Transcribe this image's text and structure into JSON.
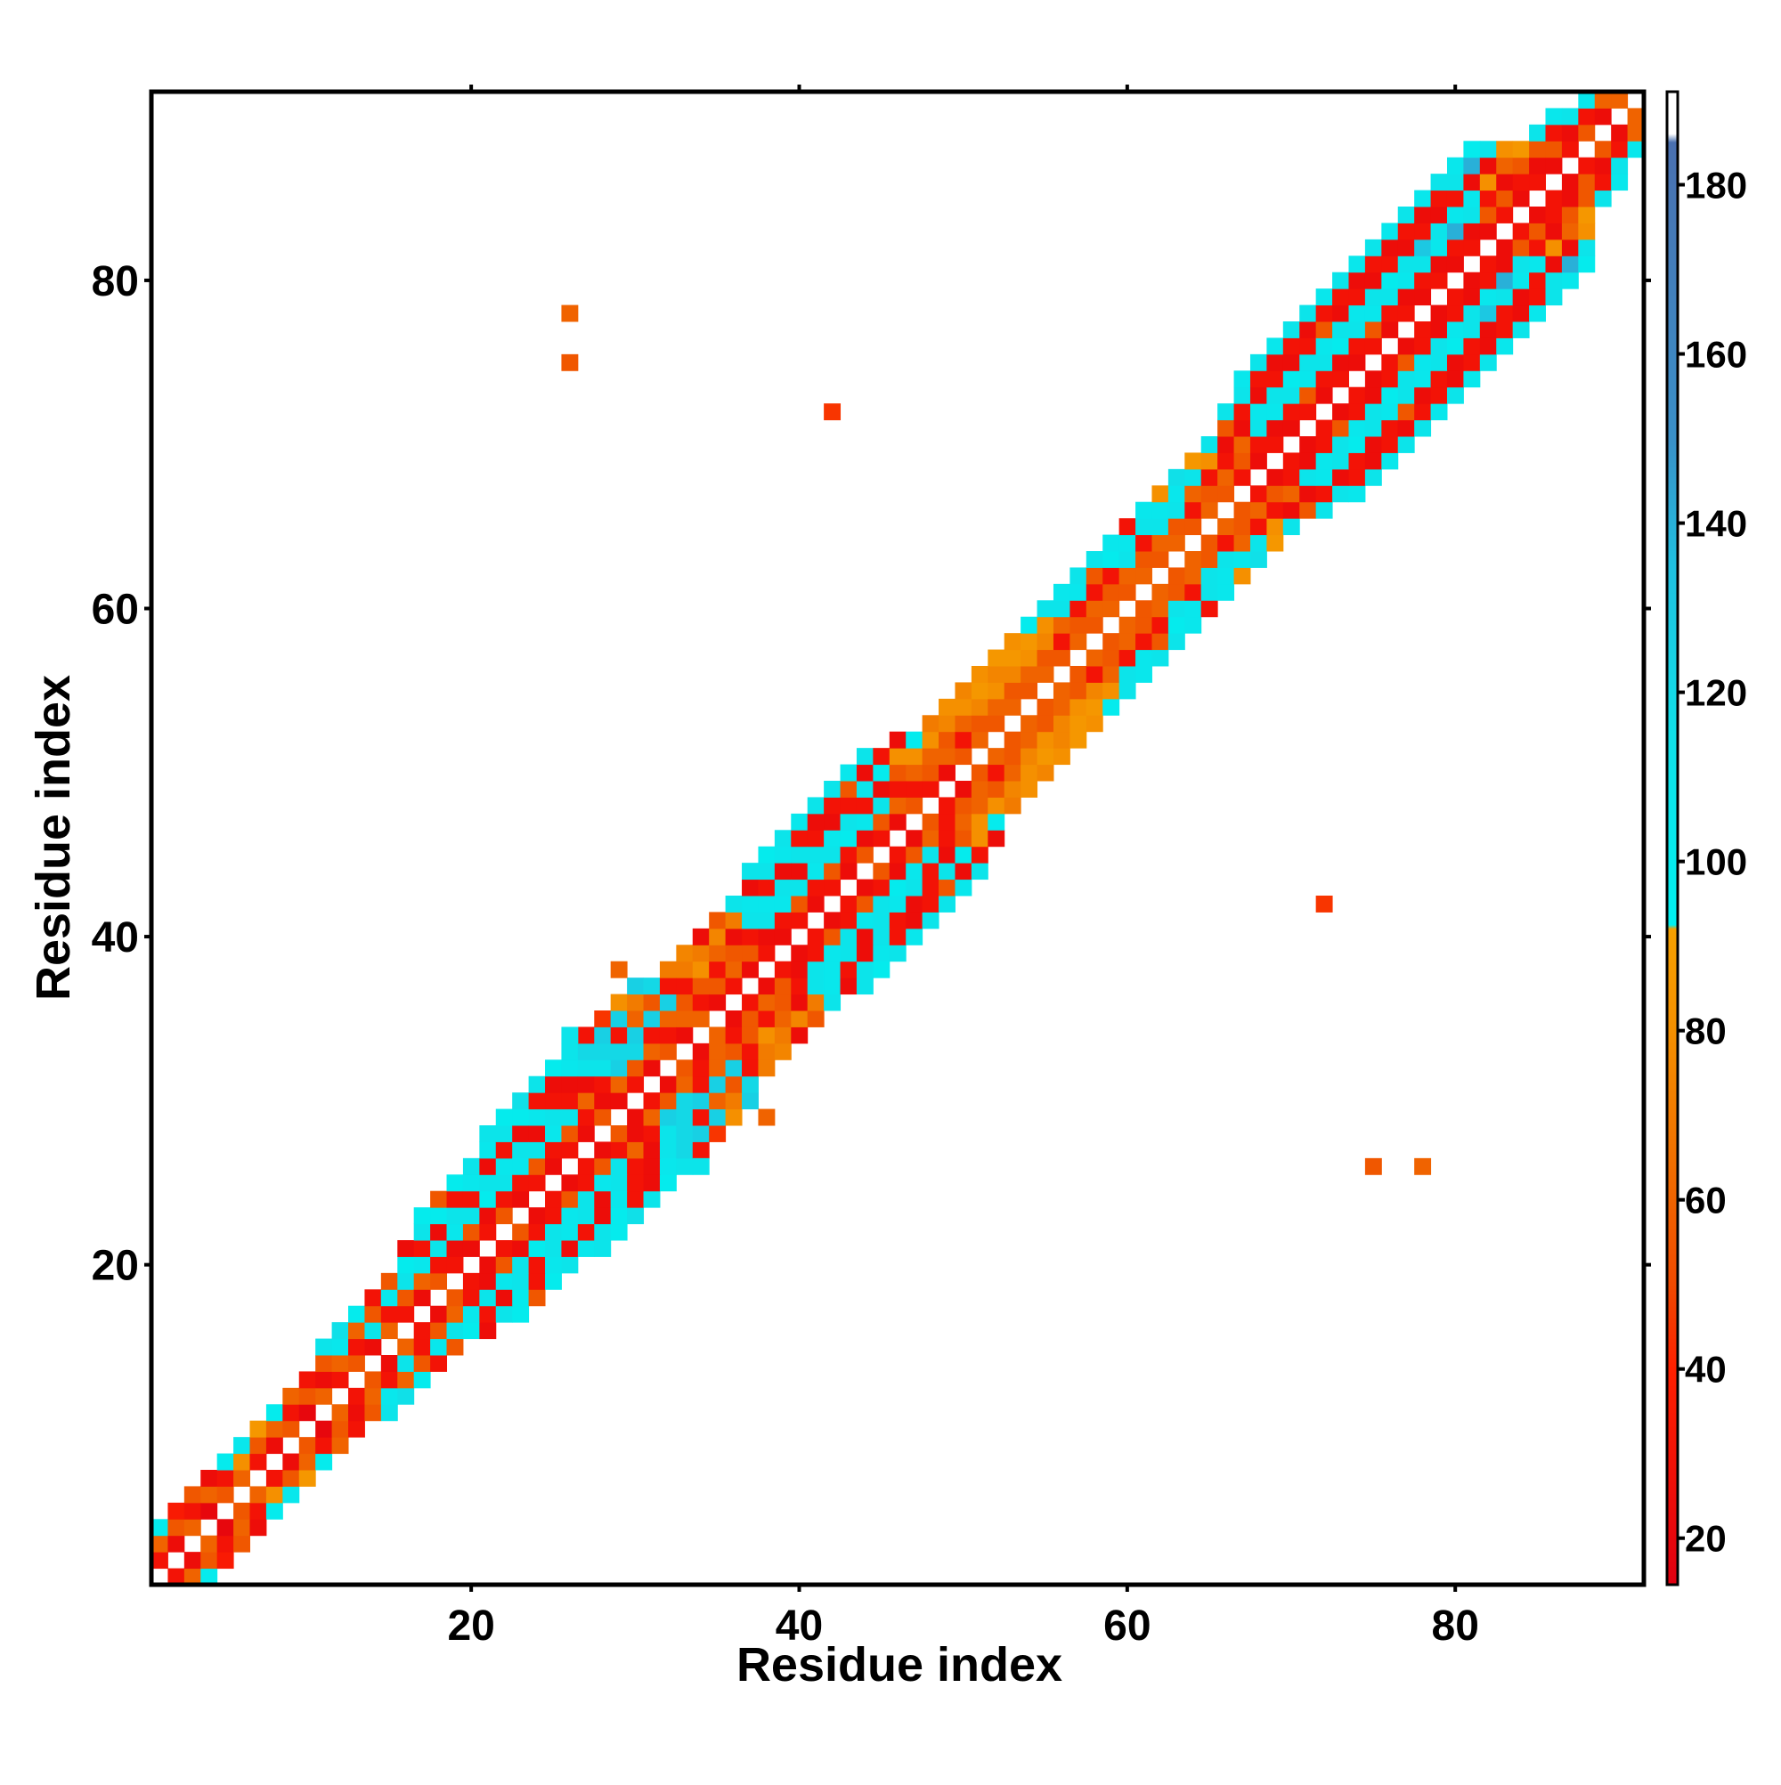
{
  "chart_data": {
    "type": "heatmap",
    "xlabel": "Residue index",
    "ylabel": "Residue index",
    "xlim": [
      0.5,
      91.5
    ],
    "ylim": [
      0.5,
      91.5
    ],
    "xticks": [
      20,
      40,
      60,
      80
    ],
    "yticks": [
      20,
      40,
      60,
      80
    ],
    "symmetric": true,
    "clim": [
      14.5,
      191
    ],
    "cticks": [
      20,
      40,
      60,
      80,
      100,
      120,
      140,
      160,
      180
    ],
    "colorscale": [
      [
        14.5,
        "#e00010"
      ],
      [
        40,
        "#ff2000"
      ],
      [
        50,
        "#f04a00"
      ],
      [
        65,
        "#f07000"
      ],
      [
        80,
        "#f59000"
      ],
      [
        92,
        "#f5a000"
      ],
      [
        92.5,
        "#00f0f0"
      ],
      [
        115,
        "#10e0e8"
      ],
      [
        135,
        "#20c0e0"
      ],
      [
        150,
        "#3a90c8"
      ],
      [
        185,
        "#4a70b0"
      ],
      [
        186,
        "#ffffff"
      ],
      [
        191,
        "#ffffff"
      ]
    ],
    "rows": [
      {
        "residue": 1,
        "values": [
          30,
          60,
          100
        ]
      },
      {
        "residue": 2,
        "values": [
          25,
          55,
          35
        ]
      },
      {
        "residue": 3,
        "values": [
          60,
          30,
          55
        ]
      },
      {
        "residue": 4,
        "values": [
          20,
          60,
          25
        ]
      },
      {
        "residue": 5,
        "values": [
          55,
          30,
          100
        ]
      },
      {
        "residue": 6,
        "values": [
          60,
          80,
          105
        ]
      },
      {
        "residue": 7,
        "values": [
          30,
          55,
          85
        ]
      },
      {
        "residue": 8,
        "values": [
          25,
          60,
          100
        ]
      },
      {
        "residue": 9,
        "values": [
          55,
          30,
          60
        ]
      },
      {
        "residue": 10,
        "values": [
          20,
          55,
          30
        ]
      },
      {
        "residue": 11,
        "values": [
          60,
          25,
          55,
          110
        ]
      },
      {
        "residue": 12,
        "values": [
          30,
          60,
          105,
          115
        ]
      },
      {
        "residue": 13,
        "values": [
          55,
          30,
          60,
          100
        ]
      },
      {
        "residue": 14,
        "values": [
          25,
          110,
          55,
          30
        ]
      },
      {
        "residue": 15,
        "values": [
          60,
          30,
          105,
          55
        ]
      },
      {
        "residue": 16,
        "values": [
          30,
          55,
          110,
          100,
          25
        ]
      },
      {
        "residue": 17,
        "values": [
          25,
          60,
          105,
          30,
          110,
          100
        ]
      },
      {
        "residue": 18,
        "values": [
          55,
          30,
          110,
          25,
          100,
          55
        ]
      },
      {
        "residue": 19,
        "values": [
          30,
          25,
          105,
          110,
          30,
          100
        ]
      },
      {
        "residue": 20,
        "values": [
          25,
          55,
          110,
          30,
          105,
          110
        ]
      },
      {
        "residue": 21,
        "values": [
          30,
          25,
          100,
          110,
          25,
          105,
          110
        ]
      },
      {
        "residue": 22,
        "values": [
          55,
          30,
          110,
          105,
          30,
          110,
          100
        ]
      },
      {
        "residue": 23,
        "values": [
          25,
          30,
          105,
          110,
          25,
          100,
          115
        ]
      },
      {
        "residue": 24,
        "values": [
          30,
          55,
          110,
          25,
          105,
          30,
          110
        ]
      },
      {
        "residue": 25,
        "values": [
          25,
          30,
          105,
          110,
          30,
          25,
          100
        ]
      },
      {
        "residue": 26,
        "values": [
          30,
          55,
          110,
          30,
          25,
          105,
          110
        ]
      },
      {
        "residue": 27,
        "values": [
          25,
          30,
          60,
          25,
          110,
          120,
          30
        ]
      },
      {
        "residue": 28,
        "values": [
          55,
          25,
          30,
          110,
          120,
          125,
          45
        ]
      },
      {
        "residue": 29,
        "values": [
          25,
          60,
          125,
          120,
          30,
          125,
          80
        ]
      },
      {
        "residue": 30,
        "values": [
          30,
          55,
          120,
          125,
          60,
          70,
          125
        ]
      },
      {
        "residue": 31,
        "values": [
          25,
          60,
          30,
          125,
          55,
          120
        ]
      },
      {
        "residue": 32,
        "values": [
          55,
          30,
          60,
          125,
          30,
          70
        ]
      },
      {
        "residue": 33,
        "values": [
          25,
          60,
          55,
          30,
          70,
          75
        ]
      },
      {
        "residue": 34,
        "values": [
          60,
          30,
          55,
          80,
          70,
          25
        ]
      },
      {
        "residue": 35,
        "values": [
          25,
          55,
          30,
          60,
          75,
          55
        ]
      },
      {
        "residue": 36,
        "values": [
          30,
          60,
          55,
          25,
          70,
          110
        ]
      },
      {
        "residue": 37,
        "values": [
          25,
          55,
          30,
          110,
          105,
          25,
          110
        ]
      },
      {
        "residue": 38,
        "values": [
          30,
          25,
          110,
          105,
          30,
          110,
          100
        ]
      },
      {
        "residue": 39,
        "values": [
          25,
          30,
          105,
          110,
          25,
          105,
          110
        ]
      },
      {
        "residue": 40,
        "values": [
          30,
          55,
          110,
          25,
          110,
          30,
          105
        ]
      },
      {
        "residue": 41,
        "values": [
          25,
          30,
          105,
          110,
          30,
          25,
          110
        ]
      },
      {
        "residue": 42,
        "values": [
          30,
          55,
          110,
          105,
          25,
          30,
          110
        ]
      },
      {
        "residue": 43,
        "values": [
          25,
          30,
          100,
          110,
          30,
          55,
          105
        ]
      },
      {
        "residue": 44,
        "values": [
          55,
          25,
          105,
          30,
          110,
          25,
          110
        ]
      },
      {
        "residue": 45,
        "values": [
          30,
          55,
          110,
          25,
          100,
          30
        ]
      },
      {
        "residue": 46,
        "values": [
          25,
          60,
          30,
          55,
          80,
          25
        ]
      },
      {
        "residue": 47,
        "values": [
          55,
          30,
          60,
          80,
          100
        ]
      },
      {
        "residue": 48,
        "values": [
          30,
          55,
          60,
          80,
          70
        ]
      },
      {
        "residue": 49,
        "values": [
          25,
          60,
          55,
          75,
          80
        ]
      },
      {
        "residue": 50,
        "values": [
          55,
          30,
          60,
          80,
          75
        ]
      },
      {
        "residue": 51,
        "values": [
          60,
          55,
          75,
          85,
          80
        ]
      },
      {
        "residue": 52,
        "values": [
          55,
          60,
          80,
          75,
          85
        ]
      },
      {
        "residue": 53,
        "values": [
          60,
          55,
          75,
          85,
          80
        ]
      },
      {
        "residue": 54,
        "values": [
          55,
          60,
          80,
          85,
          100
        ]
      },
      {
        "residue": 55,
        "values": [
          60,
          55,
          75,
          80,
          110
        ]
      },
      {
        "residue": 56,
        "values": [
          55,
          30,
          60,
          110,
          105
        ]
      },
      {
        "residue": 57,
        "values": [
          60,
          55,
          30,
          105,
          110
        ]
      },
      {
        "residue": 58,
        "values": [
          55,
          60,
          30,
          55,
          110
        ]
      },
      {
        "residue": 59,
        "values": [
          60,
          55,
          30,
          100,
          105
        ]
      },
      {
        "residue": 60,
        "values": [
          55,
          60,
          110,
          105,
          30
        ]
      },
      {
        "residue": 61,
        "values": [
          60,
          55,
          30,
          110,
          105
        ]
      },
      {
        "residue": 62,
        "values": [
          55,
          60,
          110,
          105,
          80
        ]
      },
      {
        "residue": 63,
        "values": [
          60,
          55,
          110,
          105,
          115
        ]
      },
      {
        "residue": 64,
        "values": [
          55,
          30,
          60,
          110,
          85
        ]
      },
      {
        "residue": 65,
        "values": [
          60,
          55,
          30,
          80,
          110
        ]
      },
      {
        "residue": 66,
        "values": [
          55,
          60,
          30,
          25,
          55,
          110
        ]
      },
      {
        "residue": 67,
        "values": [
          30,
          55,
          60,
          25,
          30,
          110,
          105
        ]
      },
      {
        "residue": 68,
        "values": [
          25,
          30,
          110,
          105,
          25,
          30,
          110
        ]
      },
      {
        "residue": 69,
        "values": [
          30,
          25,
          105,
          110,
          30,
          25,
          105
        ]
      },
      {
        "residue": 70,
        "values": [
          25,
          30,
          110,
          100,
          25,
          30,
          110
        ]
      },
      {
        "residue": 71,
        "values": [
          30,
          55,
          105,
          110,
          30,
          25,
          110
        ]
      },
      {
        "residue": 72,
        "values": [
          25,
          30,
          110,
          105,
          55,
          30,
          105
        ]
      },
      {
        "residue": 73,
        "values": [
          30,
          25,
          100,
          110,
          25,
          30,
          110
        ]
      },
      {
        "residue": 74,
        "values": [
          25,
          30,
          110,
          105,
          30,
          25,
          105
        ]
      },
      {
        "residue": 75,
        "values": [
          30,
          55,
          105,
          110,
          25,
          30,
          110
        ]
      },
      {
        "residue": 76,
        "values": [
          25,
          30,
          110,
          100,
          30,
          25,
          105
        ]
      },
      {
        "residue": 77,
        "values": [
          30,
          25,
          105,
          110,
          25,
          30,
          110
        ]
      },
      {
        "residue": 78,
        "values": [
          25,
          30,
          110,
          130,
          30,
          25,
          105
        ]
      },
      {
        "residue": 79,
        "values": [
          30,
          25,
          105,
          110,
          25,
          30,
          110
        ]
      },
      {
        "residue": 80,
        "values": [
          25,
          30,
          140,
          105,
          30,
          110,
          105
        ]
      },
      {
        "residue": 81,
        "values": [
          30,
          25,
          110,
          105,
          25,
          140,
          100
        ]
      },
      {
        "residue": 82,
        "values": [
          25,
          55,
          30,
          80,
          25,
          110
        ]
      },
      {
        "residue": 83,
        "values": [
          30,
          55,
          25,
          60,
          80
        ]
      },
      {
        "residue": 84,
        "values": [
          25,
          30,
          55,
          85
        ]
      },
      {
        "residue": 85,
        "values": [
          30,
          25,
          55,
          110
        ]
      },
      {
        "residue": 86,
        "values": [
          25,
          55,
          30,
          105
        ]
      },
      {
        "residue": 87,
        "values": [
          30,
          25,
          110
        ]
      },
      {
        "residue": 88,
        "values": [
          55,
          30,
          105
        ]
      },
      {
        "residue": 89,
        "values": [
          25,
          60
        ]
      },
      {
        "residue": 90,
        "values": [
          60
        ]
      }
    ],
    "contacts": {
      "x": [
        26,
        26,
        42,
        29,
        26
      ],
      "y": [
        75,
        78,
        72,
        38,
        34
      ],
      "values": [
        55,
        60,
        45,
        60,
        110
      ]
    }
  }
}
